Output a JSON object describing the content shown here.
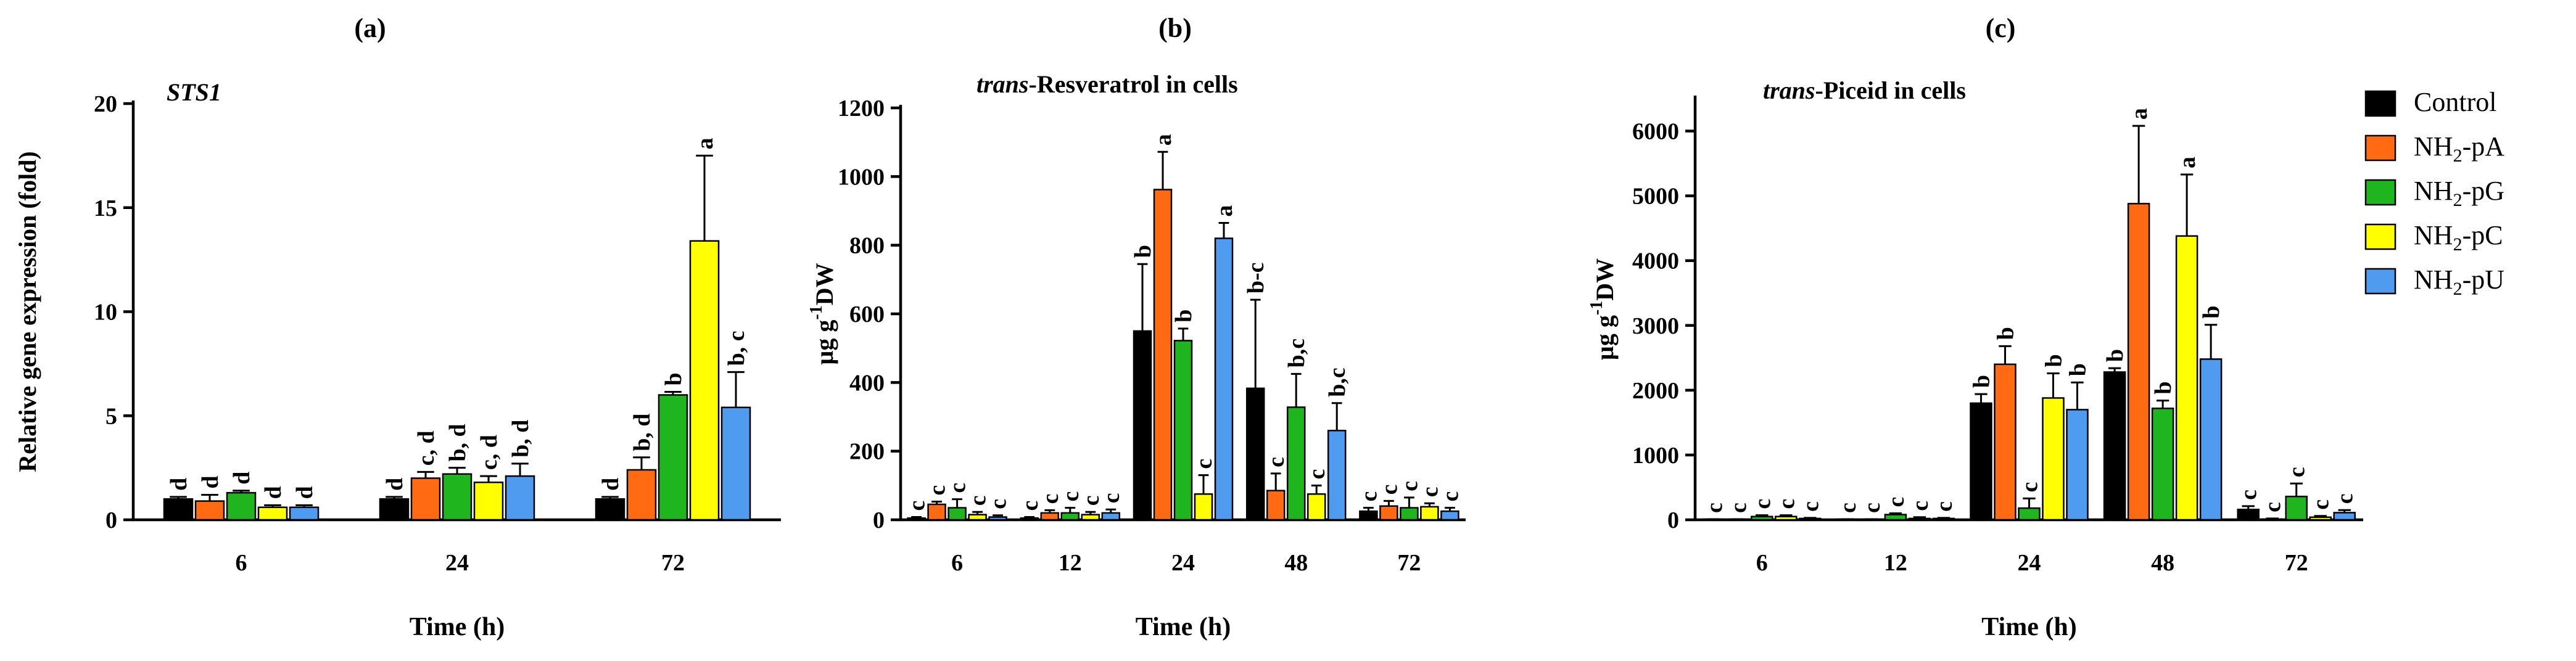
{
  "chart_data": [
    {
      "type": "bar",
      "panel_label": "(a)",
      "title_italic": "STS1",
      "title_rest": "",
      "ylabel": "Relative gene expression (fold)",
      "xlabel": "Time (h)",
      "ylim": [
        0,
        20
      ],
      "yticks": [
        0,
        5,
        10,
        15,
        20
      ],
      "categories": [
        "6",
        "24",
        "72"
      ],
      "series": [
        {
          "name": "Control",
          "values": [
            1.0,
            1.0,
            1.0
          ],
          "errors": [
            0.1,
            0.1,
            0.1
          ],
          "labels": [
            "d",
            "d",
            "d"
          ]
        },
        {
          "name": "NH2-pA",
          "values": [
            0.9,
            2.0,
            2.4
          ],
          "errors": [
            0.3,
            0.3,
            0.6
          ],
          "labels": [
            "d",
            "c, d",
            "b, d"
          ]
        },
        {
          "name": "NH2-pG",
          "values": [
            1.3,
            2.2,
            6.0
          ],
          "errors": [
            0.1,
            0.3,
            0.15
          ],
          "labels": [
            "d",
            "b, d",
            "b"
          ]
        },
        {
          "name": "NH2-pC",
          "values": [
            0.6,
            1.8,
            13.4
          ],
          "errors": [
            0.1,
            0.3,
            4.1
          ],
          "labels": [
            "d",
            "c, d",
            "a"
          ]
        },
        {
          "name": "NH2-pU",
          "values": [
            0.6,
            2.1,
            5.4
          ],
          "errors": [
            0.1,
            0.6,
            1.7
          ],
          "labels": [
            "d",
            "b, d",
            "b, c"
          ]
        }
      ]
    },
    {
      "type": "bar",
      "panel_label": "(b)",
      "title_italic": "trans",
      "title_rest": "-Resveratrol in cells",
      "ylabel": "µg g⁻¹DW",
      "xlabel": "Time (h)",
      "ylim": [
        0,
        1200
      ],
      "yticks": [
        0,
        200,
        400,
        600,
        800,
        1000,
        1200
      ],
      "categories": [
        "6",
        "12",
        "24",
        "48",
        "72"
      ],
      "series": [
        {
          "name": "Control",
          "values": [
            5,
            5,
            550,
            383,
            25
          ],
          "errors": [
            3,
            3,
            195,
            258,
            10
          ],
          "labels": [
            "c",
            "c",
            "b",
            "b-c",
            "c"
          ]
        },
        {
          "name": "NH2-pA",
          "values": [
            45,
            20,
            962,
            85,
            40
          ],
          "errors": [
            8,
            8,
            110,
            50,
            15
          ],
          "labels": [
            "c",
            "c",
            "a",
            "c",
            "c"
          ]
        },
        {
          "name": "NH2-pG",
          "values": [
            35,
            20,
            522,
            328,
            35
          ],
          "errors": [
            25,
            15,
            35,
            97,
            30
          ],
          "labels": [
            "c",
            "c",
            "b",
            "b,c",
            "c"
          ]
        },
        {
          "name": "NH2-pC",
          "values": [
            15,
            15,
            75,
            75,
            38
          ],
          "errors": [
            8,
            8,
            55,
            25,
            10
          ],
          "labels": [
            "c",
            "c",
            "c",
            "c",
            "c"
          ]
        },
        {
          "name": "NH2-pU",
          "values": [
            8,
            20,
            820,
            260,
            25
          ],
          "errors": [
            5,
            10,
            45,
            80,
            10
          ],
          "labels": [
            "c",
            "c",
            "a",
            "b,c",
            "c"
          ]
        }
      ]
    },
    {
      "type": "bar",
      "panel_label": "(c)",
      "title_italic": "trans",
      "title_rest": "-Piceid in cells",
      "ylabel": "µg g⁻¹DW",
      "xlabel": "Time (h)",
      "ylim": [
        0,
        6500
      ],
      "yticks": [
        0,
        1000,
        2000,
        3000,
        4000,
        5000,
        6000
      ],
      "categories": [
        "6",
        "12",
        "24",
        "48",
        "72"
      ],
      "series": [
        {
          "name": "Control",
          "values": [
            5,
            5,
            1800,
            2280,
            160
          ],
          "errors": [
            5,
            5,
            140,
            60,
            50
          ],
          "labels": [
            "c",
            "c",
            "b",
            "b",
            "c"
          ]
        },
        {
          "name": "NH2-pA",
          "values": [
            5,
            5,
            2400,
            4880,
            10
          ],
          "errors": [
            5,
            5,
            280,
            1200,
            10
          ],
          "labels": [
            "c",
            "c",
            "b",
            "a",
            "c"
          ]
        },
        {
          "name": "NH2-pG",
          "values": [
            50,
            80,
            180,
            1720,
            360
          ],
          "errors": [
            20,
            20,
            150,
            120,
            200
          ],
          "labels": [
            "c",
            "c",
            "c",
            "b",
            "c"
          ]
        },
        {
          "name": "NH2-pC",
          "values": [
            50,
            20,
            1880,
            4380,
            40
          ],
          "errors": [
            20,
            20,
            380,
            950,
            20
          ],
          "labels": [
            "c",
            "c",
            "b",
            "a",
            "c"
          ]
        },
        {
          "name": "NH2-pU",
          "values": [
            20,
            20,
            1700,
            2480,
            110
          ],
          "errors": [
            10,
            10,
            420,
            530,
            40
          ],
          "labels": [
            "c",
            "c",
            "b",
            "b",
            "c"
          ]
        }
      ]
    }
  ],
  "legend": {
    "items": [
      {
        "base": "Control",
        "sub": "",
        "suffix": "",
        "color": "#000000"
      },
      {
        "base": "NH",
        "sub": "2",
        "suffix": "-pA",
        "color": "#ff6a13"
      },
      {
        "base": "NH",
        "sub": "2",
        "suffix": "-pG",
        "color": "#1fb51f"
      },
      {
        "base": "NH",
        "sub": "2",
        "suffix": "-pC",
        "color": "#ffff00"
      },
      {
        "base": "NH",
        "sub": "2",
        "suffix": "-pU",
        "color": "#4f9bf0"
      }
    ]
  }
}
